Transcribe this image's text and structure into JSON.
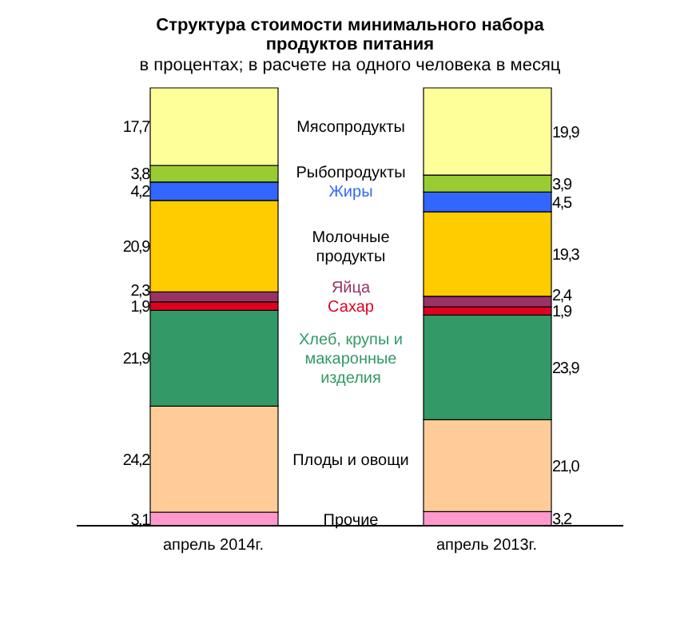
{
  "chart_data": {
    "type": "bar",
    "title": "Структура стоимости минимального набора продуктов питания",
    "subtitle": "в процентах; в расчете на одного человека в месяц",
    "categories": [
      "апрель 2014г.",
      "апрель 2013г."
    ],
    "stacked": true,
    "legend": false,
    "tick_labels": "x",
    "series": [
      {
        "name": "Прочие",
        "color": "#ff99cc",
        "values": [
          3.1,
          3.2
        ],
        "value_labels": [
          "3,1",
          "3,2"
        ]
      },
      {
        "name": "Плоды и овощи",
        "color": "#ffcc99",
        "values": [
          24.2,
          21.0
        ],
        "value_labels": [
          "24,2",
          "21,0"
        ]
      },
      {
        "name": "Хлеб, крупы и макаронные изделия",
        "color": "#339966",
        "values": [
          21.9,
          23.9
        ],
        "value_labels": [
          "21,9",
          "23,9"
        ]
      },
      {
        "name": "Сахар",
        "color": "#e00020",
        "values": [
          1.9,
          1.9
        ],
        "value_labels": [
          "1,9",
          "1,9"
        ]
      },
      {
        "name": "Яйца",
        "color": "#993366",
        "values": [
          2.3,
          2.4
        ],
        "value_labels": [
          "2,3",
          "2,4"
        ]
      },
      {
        "name": "Молочные продукты",
        "color": "#ffcc00",
        "values": [
          20.9,
          19.3
        ],
        "value_labels": [
          "20,9",
          "19,3"
        ]
      },
      {
        "name": "Жиры",
        "color": "#3366ff",
        "values": [
          4.2,
          4.5
        ],
        "value_labels": [
          "4,2",
          "4,5"
        ]
      },
      {
        "name": "Рыбопродукты",
        "color": "#99cc33",
        "values": [
          3.8,
          3.9
        ],
        "value_labels": [
          "3,8",
          "3,9"
        ]
      },
      {
        "name": "Мясопродукты",
        "color": "#ffff99",
        "values": [
          17.7,
          19.9
        ],
        "value_labels": [
          "17,7",
          "19,9"
        ]
      }
    ]
  }
}
